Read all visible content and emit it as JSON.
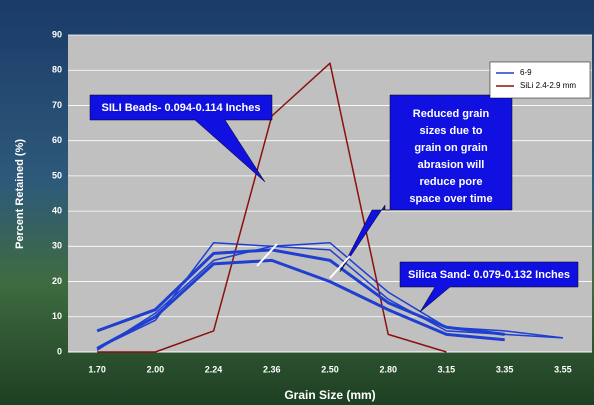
{
  "chart_data": {
    "type": "line",
    "x_label": "Grain Size (mm)",
    "y_label": "Percent Retained (%)",
    "categories": [
      "1.70",
      "2.00",
      "2.24",
      "2.36",
      "2.50",
      "2.80",
      "3.15",
      "3.35",
      "3.55"
    ],
    "ylim": [
      0,
      90
    ],
    "yticks": [
      0,
      10,
      20,
      30,
      40,
      50,
      60,
      70,
      80,
      90
    ],
    "grid": true,
    "legend": "top-right",
    "series": [
      {
        "name": "6-9",
        "color": "#1f3fd0",
        "width": 1.5,
        "values": [
          1,
          9,
          31,
          30,
          31,
          17,
          7,
          6,
          4
        ]
      },
      {
        "name": "SiLi 2.4-2.9 mm",
        "color": "#8b1010",
        "width": 1.5,
        "values": [
          0,
          0,
          6,
          67,
          82,
          5,
          0,
          null,
          null
        ]
      },
      {
        "color": "#1f3fd0",
        "width": 3,
        "values": [
          1,
          10,
          25,
          26,
          20,
          12,
          5,
          3.5,
          null
        ]
      },
      {
        "color": "#1f3fd0",
        "width": 3,
        "values": [
          6,
          12,
          28,
          29,
          26,
          14,
          7,
          5,
          null
        ]
      },
      {
        "color": "#1f3fd0",
        "width": 1.5,
        "values": [
          0.5,
          11,
          26,
          30,
          29,
          15,
          6,
          5,
          4
        ]
      }
    ],
    "annotations": [
      {
        "text": "SILI Beads- 0.094-0.114 Inches"
      },
      {
        "lines": [
          "Reduced grain",
          "sizes due to",
          "grain on grain",
          "abrasion will",
          "reduce pore",
          "space over time"
        ]
      },
      {
        "text": "Silica Sand- 0.079-0.132 Inches"
      }
    ]
  }
}
